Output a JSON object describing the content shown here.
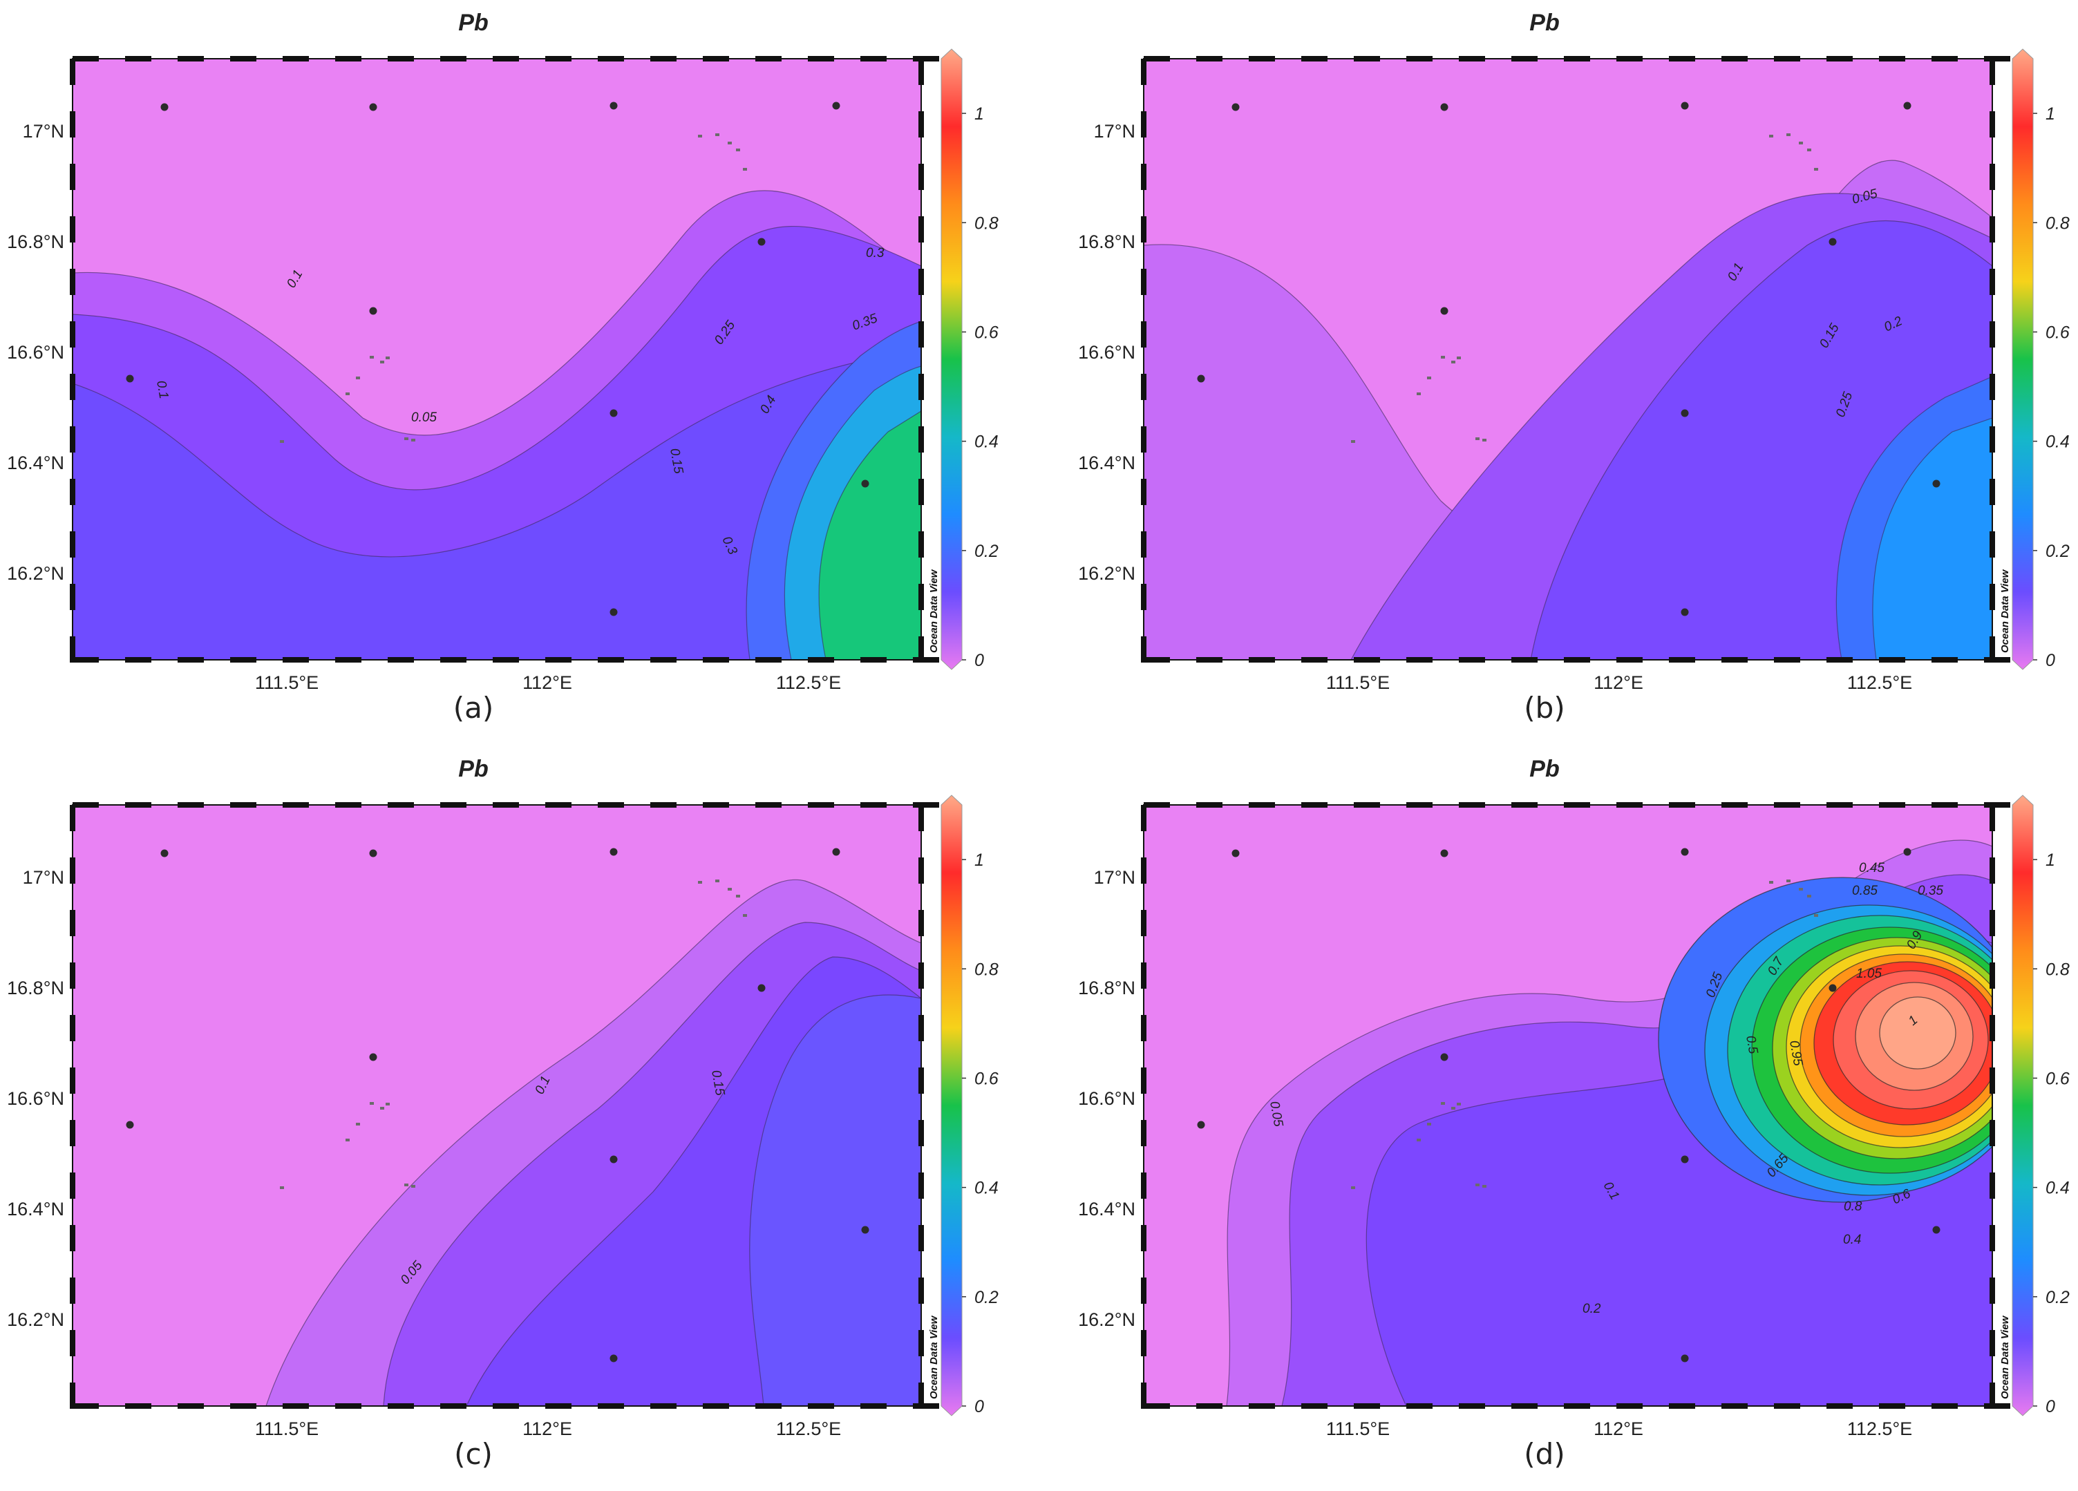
{
  "figure": {
    "panels": [
      {
        "id": "a",
        "title": "Pb",
        "label": "(a)",
        "contour_labels": [
          "0.1",
          "0.05",
          "0.1",
          "0.15",
          "0.25",
          "0.3",
          "0.35",
          "0.4",
          "0.3"
        ],
        "hotspot": {
          "value_max": 0.42,
          "location": "south-east",
          "colors": [
            "#6b4dff",
            "#2f7dff",
            "#1fb8e0",
            "#19c77e",
            "#12c865"
          ]
        }
      },
      {
        "id": "b",
        "title": "Pb",
        "label": "(b)",
        "contour_labels": [
          "0.05",
          "0.1",
          "0.15",
          "0.2",
          "0.25"
        ],
        "hotspot": {
          "value_max": 0.28,
          "location": "south-east",
          "colors": [
            "#6b4dff",
            "#3d6cff",
            "#1f8cff",
            "#1f98ff"
          ]
        }
      },
      {
        "id": "c",
        "title": "Pb",
        "label": "(c)",
        "contour_labels": [
          "0.05",
          "0.1",
          "0.15"
        ],
        "hotspot": {
          "value_max": 0.16,
          "location": "east",
          "colors": [
            "#7a3dfa",
            "#6a4cff",
            "#6a58ff"
          ]
        }
      },
      {
        "id": "d",
        "title": "Pb",
        "label": "(d)",
        "contour_labels": [
          "0.05",
          "0.1",
          "0.2",
          "0.25",
          "0.35",
          "0.4",
          "0.45",
          "0.5",
          "0.6",
          "0.65",
          "0.7",
          "0.8",
          "0.85",
          "0.9",
          "0.95",
          "1",
          "1.05"
        ],
        "hotspot": {
          "value_max": 1.07,
          "location": "north-east",
          "colors": [
            "#6b4dff",
            "#2f7dff",
            "#15b8c8",
            "#18c24a",
            "#9ad21f",
            "#f6d21a",
            "#ff8c1a",
            "#ff2b2b",
            "#ff6b5e",
            "#ffa080"
          ]
        }
      }
    ],
    "lat_ticks": [
      "17°N",
      "16.8°N",
      "16.6°N",
      "16.4°N",
      "16.2°N"
    ],
    "lon_ticks": [
      "111.5°E",
      "112°E",
      "112.5°E"
    ],
    "colorbar": {
      "ticks": [
        "1",
        "0.8",
        "0.6",
        "0.4",
        "0.2",
        "0"
      ],
      "range": [
        0,
        1.1
      ],
      "watermark": "Ocean Data View",
      "stops": [
        "#ffaa88",
        "#ff2b2b",
        "#ff8c1a",
        "#f6d21a",
        "#18c24a",
        "#15b8c8",
        "#1f8cff",
        "#6b4dff",
        "#e87af0"
      ]
    },
    "stations_count": 10
  }
}
